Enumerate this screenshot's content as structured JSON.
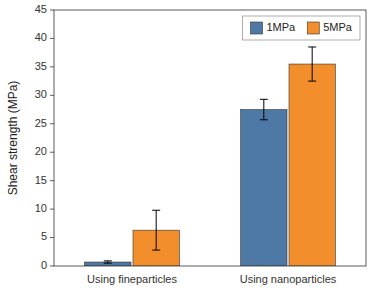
{
  "chart_data": {
    "type": "bar",
    "ylabel": "Shear strength (MPa)",
    "categories": [
      "Using fineparticles",
      "Using nanoparticles"
    ],
    "series": [
      {
        "name": "1MPa",
        "color": "#4e79a7",
        "values": [
          0.7,
          27.5
        ],
        "errors": [
          0.2,
          1.8
        ]
      },
      {
        "name": "5MPa",
        "color": "#f28e2b",
        "values": [
          6.3,
          35.5
        ],
        "errors": [
          3.5,
          3.0
        ]
      }
    ],
    "ylim": [
      0,
      45
    ],
    "yticks": [
      0,
      5,
      10,
      15,
      20,
      25,
      30,
      35,
      40,
      45
    ],
    "grid": false,
    "legend": "upper right"
  }
}
